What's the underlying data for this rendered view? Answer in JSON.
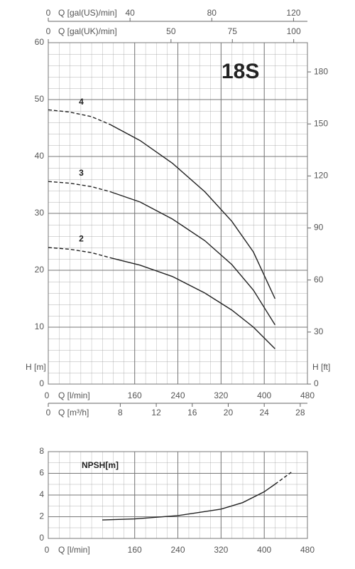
{
  "chart_data": [
    {
      "type": "line",
      "title": "18S",
      "x": [
        0,
        40,
        80,
        115,
        170,
        230,
        290,
        340,
        380,
        420
      ],
      "dashed_below_x": 115,
      "xlim": [
        0,
        480
      ],
      "xticks": [
        0,
        160,
        240,
        320,
        400,
        480
      ],
      "xlabel": "Q [l/min]",
      "ylim": [
        0,
        60
      ],
      "yticks": [
        0,
        10,
        20,
        30,
        40,
        50,
        60
      ],
      "ylabel": "H [m]",
      "y2lim": [
        0,
        196.85
      ],
      "y2ticks": [
        0,
        30,
        60,
        90,
        120,
        150,
        180
      ],
      "y2label": "H [ft]",
      "extra_x_axes": [
        {
          "label": "Q [m³/h]",
          "position": "bottom",
          "lim": [
            0,
            28.8
          ],
          "ticks": [
            0,
            8,
            12,
            16,
            20,
            24,
            28
          ]
        },
        {
          "label": "Q [gal(US)/min]",
          "position": "top",
          "lim": [
            0,
            126.8
          ],
          "ticks": [
            0,
            40,
            80,
            120
          ]
        },
        {
          "label": "Q [gal(UK)/min]",
          "position": "top",
          "lim": [
            0,
            105.6
          ],
          "ticks": [
            0,
            50,
            75,
            100
          ]
        }
      ],
      "grid": true,
      "series": [
        {
          "name": "4",
          "color": "#222222",
          "values": [
            48.2,
            47.8,
            47.0,
            45.6,
            42.8,
            38.8,
            33.8,
            28.6,
            23.2,
            15.0
          ]
        },
        {
          "name": "3",
          "color": "#222222",
          "values": [
            35.6,
            35.3,
            34.7,
            33.8,
            32.0,
            29.0,
            25.2,
            21.0,
            16.5,
            10.4
          ]
        },
        {
          "name": "2",
          "color": "#222222",
          "values": [
            24.0,
            23.7,
            23.1,
            22.2,
            20.9,
            18.9,
            16.0,
            13.0,
            10.0,
            6.2
          ]
        }
      ]
    },
    {
      "type": "line",
      "title": "NPSH[m]",
      "x": [
        100,
        160,
        240,
        320,
        360,
        400,
        420,
        450
      ],
      "dashed_above_x": 420,
      "xlim": [
        0,
        480
      ],
      "xticks": [
        0,
        160,
        240,
        320,
        400,
        480
      ],
      "xlabel": "Q [l/min]",
      "ylim": [
        0,
        8
      ],
      "yticks": [
        0,
        2,
        4,
        6,
        8
      ],
      "grid": true,
      "series": [
        {
          "color": "#222222",
          "values": [
            1.7,
            1.8,
            2.1,
            2.7,
            3.3,
            4.3,
            5.0,
            6.1
          ]
        }
      ]
    }
  ]
}
